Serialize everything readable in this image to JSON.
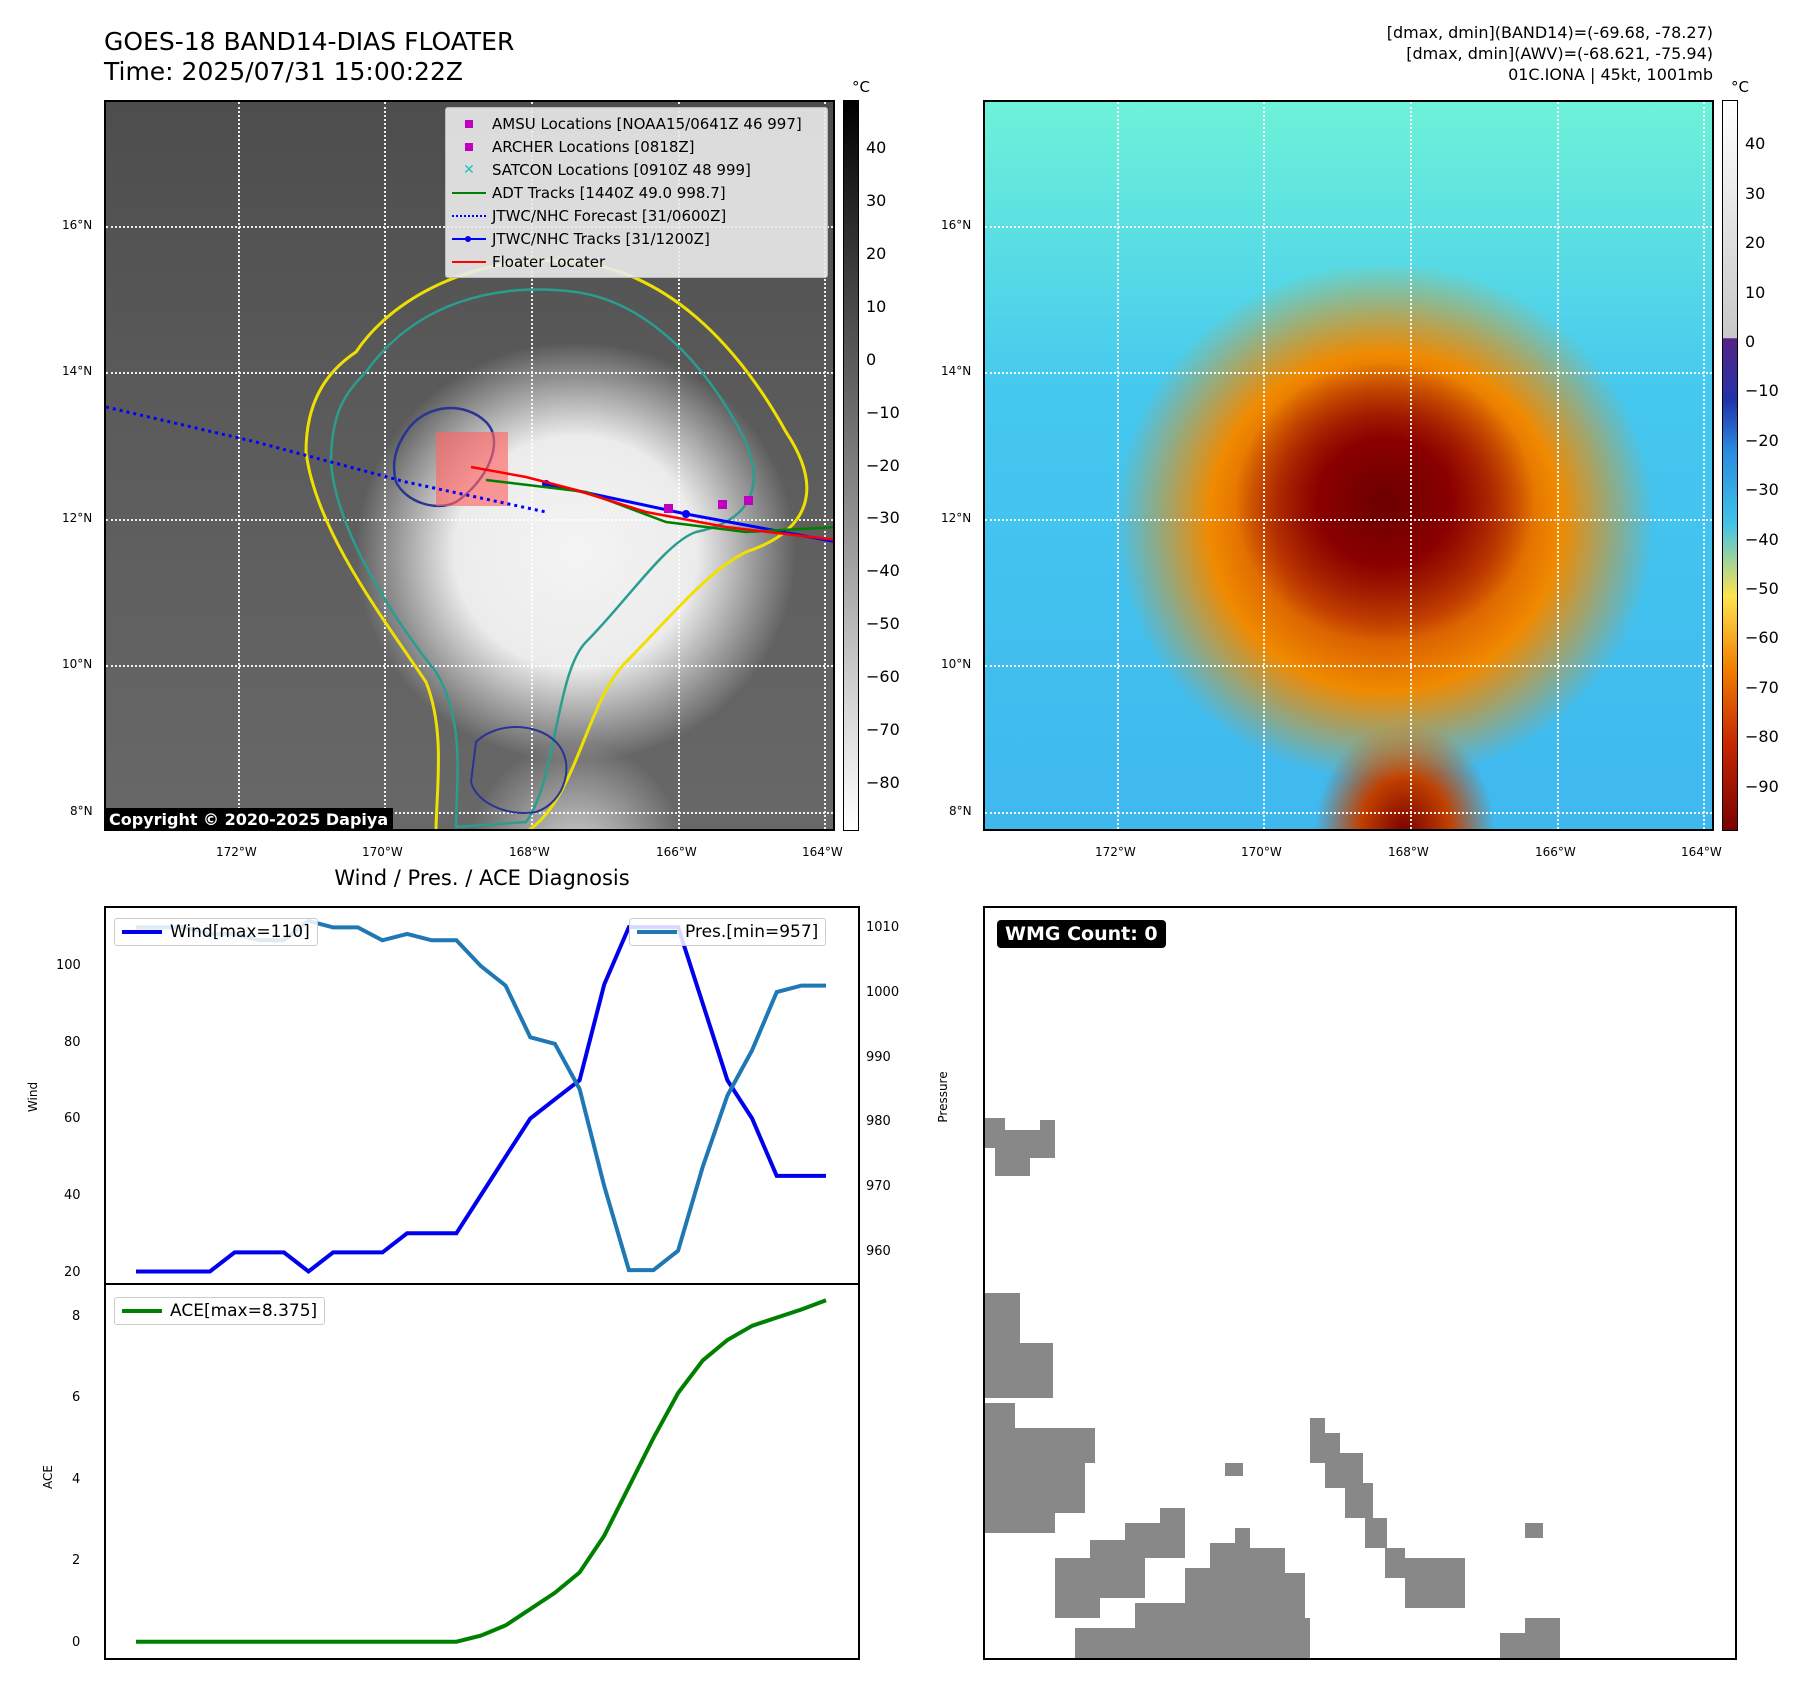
{
  "header": {
    "title_line1": "GOES-18 BAND14-DIAS FLOATER",
    "title_line2": "Time: 2025/07/31 15:00:22Z",
    "info_line1": "[dmax, dmin](BAND14)=(-69.68, -78.27)",
    "info_line2": "[dmax, dmin](AWV)=(-68.621, -75.94)",
    "info_line3": "01C.IONA | 45kt, 1001mb"
  },
  "map_axes": {
    "lat_labels": [
      "16°N",
      "14°N",
      "12°N",
      "10°N",
      "8°N"
    ],
    "lon_labels": [
      "172°W",
      "170°W",
      "168°W",
      "166°W",
      "164°W"
    ],
    "unit": "°C"
  },
  "ir_colorbar": {
    "ticks": [
      "40",
      "30",
      "20",
      "10",
      "0",
      "−10",
      "−20",
      "−30",
      "−40",
      "−50",
      "−60",
      "−70",
      "−80"
    ]
  },
  "awv_colorbar": {
    "ticks": [
      "40",
      "30",
      "20",
      "10",
      "0",
      "−10",
      "−20",
      "−30",
      "−40",
      "−50",
      "−60",
      "−70",
      "−80",
      "−90"
    ]
  },
  "legend": {
    "items": [
      {
        "label": "AMSU Locations [NOAA15/0641Z 46 997]",
        "color": "#c000c0",
        "icon": "square-marker"
      },
      {
        "label": "ARCHER Locations [0818Z]",
        "color": "#c000c0",
        "icon": "square-marker"
      },
      {
        "label": "SATCON Locations [0910Z 48 999]",
        "color": "#20c0c0",
        "icon": "x-marker"
      },
      {
        "label": "ADT Tracks [1440Z 49.0 998.7]",
        "color": "#008000",
        "icon": "solid-line"
      },
      {
        "label": "JTWC/NHC Forecast [31/0600Z]",
        "color": "#0000ff",
        "icon": "dotted-line"
      },
      {
        "label": "JTWC/NHC Tracks [31/1200Z]",
        "color": "#0000ff",
        "icon": "line-dot"
      },
      {
        "label": "Floater Locater",
        "color": "#ff0000",
        "icon": "solid-line"
      }
    ]
  },
  "copyright": "Copyright © 2020-2025 Dapiya",
  "diagnosis": {
    "title": "Wind / Pres. / ACE Diagnosis",
    "wind_legend": "Wind[max=110]",
    "pres_legend": "Pres.[min=957]",
    "ace_legend": "ACE[max=8.375]",
    "wind_axis_label": "Wind",
    "pres_axis_label": "Pressure",
    "ace_axis_label": "ACE"
  },
  "wmg": {
    "badge": "WMG Count: 0"
  },
  "chart_data": [
    {
      "type": "line",
      "title": "Wind / Pres. / ACE Diagnosis",
      "ylabel": "Wind",
      "ylim": [
        17,
        115
      ],
      "y2label": "Pressure",
      "y2lim": [
        955,
        1013
      ],
      "series": [
        {
          "name": "Wind[max=110]",
          "axis": "left",
          "color": "#0000ee",
          "values": [
            20,
            20,
            20,
            20,
            25,
            25,
            25,
            20,
            25,
            25,
            25,
            30,
            30,
            30,
            40,
            50,
            60,
            65,
            70,
            95,
            110,
            110,
            110,
            90,
            70,
            60,
            45,
            45,
            45
          ]
        },
        {
          "name": "Pres.[min=957]",
          "axis": "right",
          "color": "#1f77b4",
          "values": [
            1010,
            1010,
            1010,
            1009,
            1009,
            1008,
            1008,
            1011,
            1010,
            1010,
            1008,
            1009,
            1008,
            1008,
            1004,
            1001,
            993,
            992,
            985,
            970,
            957,
            957,
            960,
            973,
            984,
            991,
            1000,
            1001,
            1001
          ]
        }
      ],
      "left_ticks": [
        20,
        40,
        60,
        80,
        100
      ],
      "right_ticks": [
        960,
        970,
        980,
        990,
        1000,
        1010
      ]
    },
    {
      "type": "line",
      "ylabel": "ACE",
      "ylim": [
        -0.4,
        8.75
      ],
      "series": [
        {
          "name": "ACE[max=8.375]",
          "color": "#008000",
          "values": [
            0,
            0,
            0,
            0,
            0,
            0,
            0,
            0,
            0,
            0,
            0,
            0,
            0,
            0,
            0.15,
            0.4,
            0.8,
            1.2,
            1.7,
            2.6,
            3.8,
            5.0,
            6.1,
            6.9,
            7.4,
            7.75,
            7.95,
            8.15,
            8.375
          ]
        }
      ],
      "left_ticks": [
        0,
        2,
        4,
        6,
        8
      ]
    }
  ]
}
